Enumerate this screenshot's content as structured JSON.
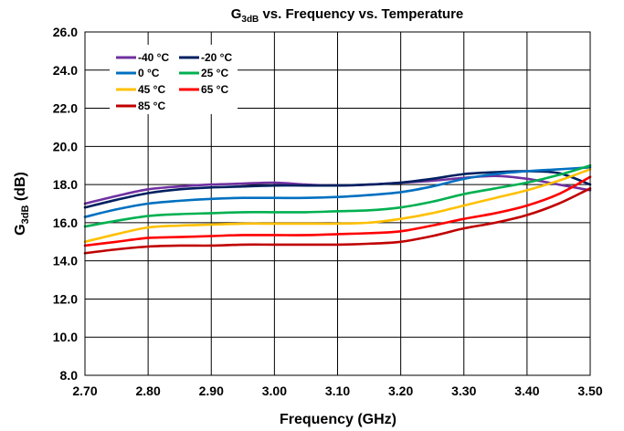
{
  "chart_data": {
    "type": "line",
    "title": {
      "main": "G",
      "sub": "3dB",
      "rest": " vs. Frequency vs. Temperature"
    },
    "xlabel": "Frequency (GHz)",
    "ylabel": {
      "main": "G",
      "sub": "3dB",
      "rest": " (dB)"
    },
    "xlim": [
      2.7,
      3.5
    ],
    "ylim": [
      8.0,
      26.0
    ],
    "xticks": [
      "2.70",
      "2.80",
      "2.90",
      "3.00",
      "3.10",
      "3.20",
      "3.30",
      "3.40",
      "3.50"
    ],
    "yticks": [
      "8.0",
      "10.0",
      "12.0",
      "14.0",
      "16.0",
      "18.0",
      "20.0",
      "22.0",
      "24.0",
      "26.0"
    ],
    "grid": true,
    "legend_position": "top-left",
    "x": [
      2.7,
      2.75,
      2.8,
      2.85,
      2.9,
      2.95,
      3.0,
      3.05,
      3.1,
      3.15,
      3.2,
      3.25,
      3.3,
      3.35,
      3.4,
      3.45,
      3.5
    ],
    "series": [
      {
        "name": "-40 °C",
        "color": "#7030A0",
        "values": [
          17.0,
          17.4,
          17.75,
          17.9,
          18.0,
          18.05,
          18.1,
          18.0,
          17.95,
          18.0,
          18.1,
          18.2,
          18.35,
          18.45,
          18.3,
          18.0,
          17.7
        ]
      },
      {
        "name": "-20 °C",
        "color": "#002060",
        "values": [
          16.8,
          17.2,
          17.55,
          17.75,
          17.85,
          17.9,
          17.95,
          17.95,
          17.95,
          18.0,
          18.1,
          18.3,
          18.55,
          18.65,
          18.7,
          18.6,
          18.0
        ]
      },
      {
        "name": "0 °C",
        "color": "#0070C0",
        "values": [
          16.3,
          16.7,
          17.0,
          17.15,
          17.25,
          17.3,
          17.3,
          17.3,
          17.35,
          17.45,
          17.6,
          17.9,
          18.3,
          18.55,
          18.7,
          18.8,
          18.9
        ]
      },
      {
        "name": "25 °C",
        "color": "#00B050",
        "values": [
          15.8,
          16.1,
          16.35,
          16.45,
          16.5,
          16.55,
          16.55,
          16.55,
          16.6,
          16.65,
          16.8,
          17.1,
          17.5,
          17.8,
          18.1,
          18.5,
          19.0
        ]
      },
      {
        "name": "45 °C",
        "color": "#FFC000",
        "values": [
          15.0,
          15.4,
          15.75,
          15.85,
          15.9,
          15.95,
          15.95,
          15.95,
          15.95,
          16.0,
          16.2,
          16.5,
          16.9,
          17.3,
          17.7,
          18.2,
          18.8
        ]
      },
      {
        "name": "65 °C",
        "color": "#FF0000",
        "values": [
          14.8,
          15.0,
          15.2,
          15.25,
          15.3,
          15.35,
          15.35,
          15.35,
          15.4,
          15.45,
          15.55,
          15.85,
          16.2,
          16.5,
          16.9,
          17.5,
          18.4
        ]
      },
      {
        "name": "85 °C",
        "color": "#C00000",
        "values": [
          14.4,
          14.6,
          14.75,
          14.8,
          14.8,
          14.85,
          14.85,
          14.85,
          14.85,
          14.9,
          15.0,
          15.3,
          15.7,
          16.0,
          16.4,
          17.0,
          17.8
        ]
      }
    ]
  }
}
